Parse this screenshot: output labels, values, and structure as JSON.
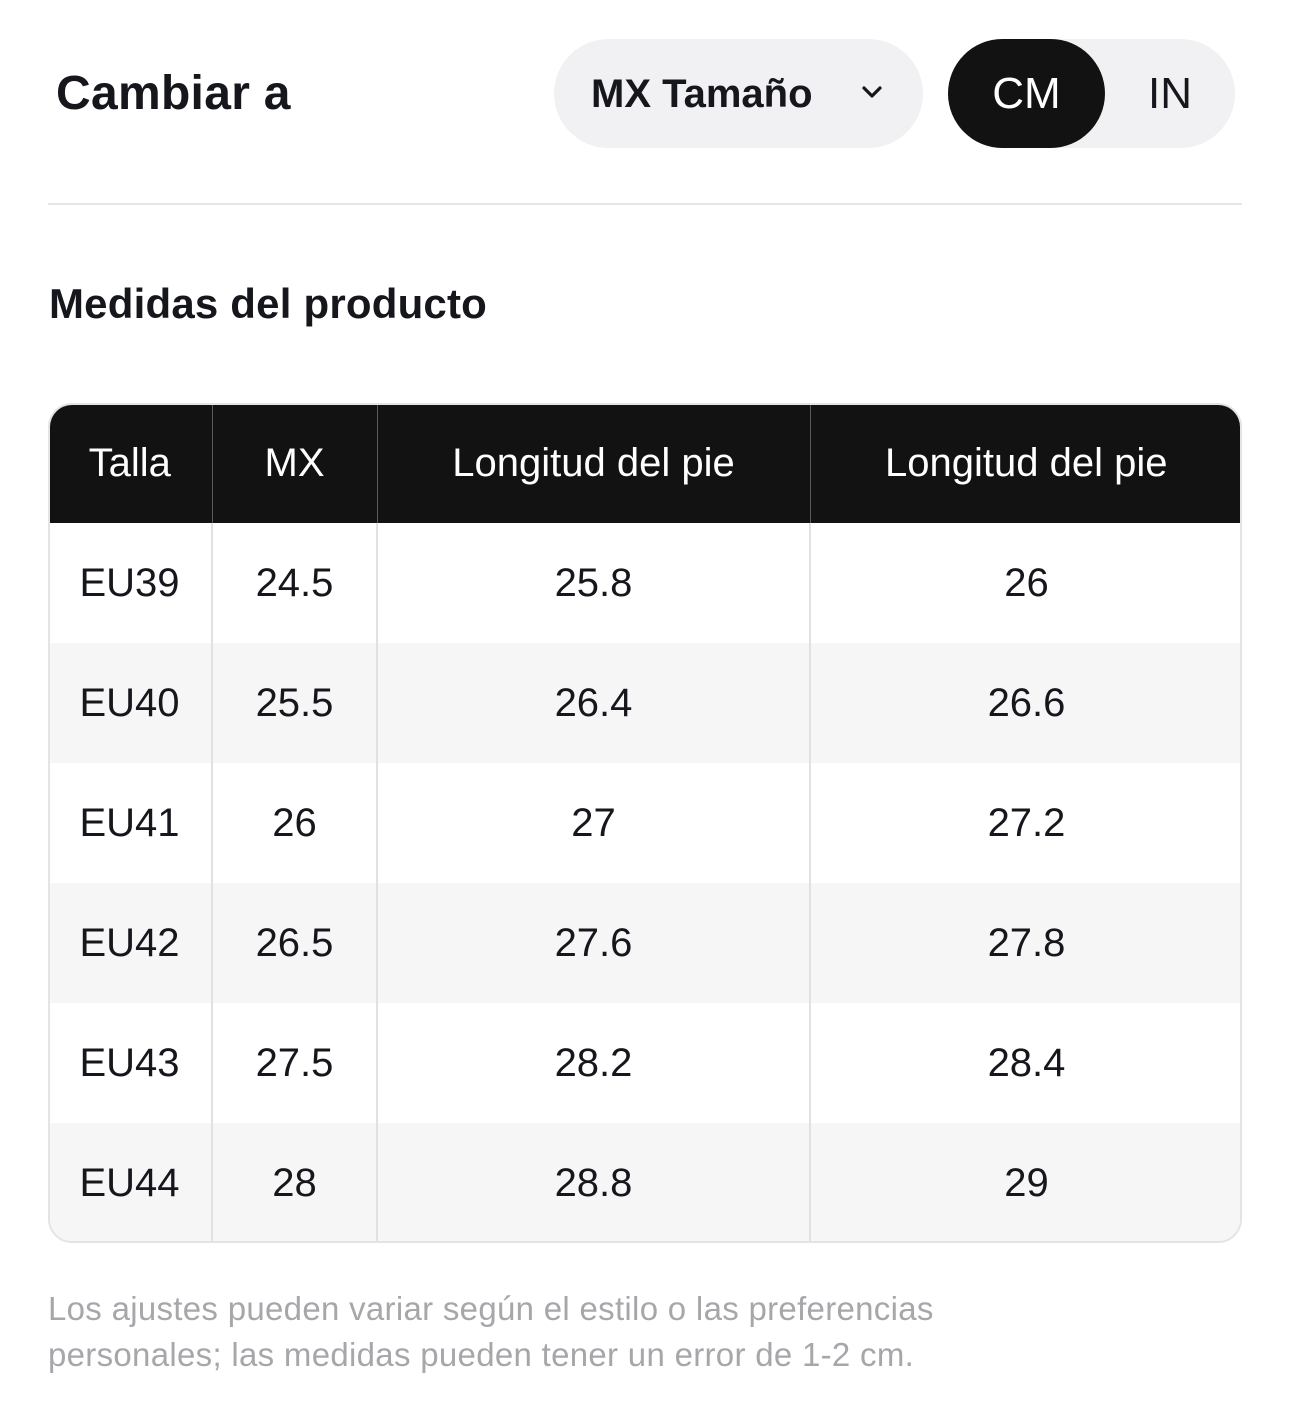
{
  "header": {
    "change_label": "Cambiar a",
    "size_dropdown": {
      "selected": "MX Tamaño",
      "icon": "chevron-down-icon"
    },
    "unit_toggle": {
      "options": [
        "CM",
        "IN"
      ],
      "selected": "CM"
    }
  },
  "section": {
    "title": "Medidas del producto"
  },
  "size_table": {
    "headers": [
      "Talla",
      "MX",
      "Longitud del pie",
      "Longitud del pie"
    ],
    "rows": [
      [
        "EU39",
        "24.5",
        "25.8",
        "26"
      ],
      [
        "EU40",
        "25.5",
        "26.4",
        "26.6"
      ],
      [
        "EU41",
        "26",
        "27",
        "27.2"
      ],
      [
        "EU42",
        "26.5",
        "27.6",
        "27.8"
      ],
      [
        "EU43",
        "27.5",
        "28.2",
        "28.4"
      ],
      [
        "EU44",
        "28",
        "28.8",
        "29"
      ]
    ]
  },
  "disclaimer": {
    "line1": "Los ajustes pueden variar según el estilo o las preferencias",
    "line2": "personales; las medidas pueden tener un error de 1-2 cm."
  },
  "colors": {
    "header_bg": "#121212",
    "toggle_bg": "#f1f1f3",
    "stripe_bg": "#f6f6f7",
    "disclaimer_text": "#a7a7ab"
  }
}
